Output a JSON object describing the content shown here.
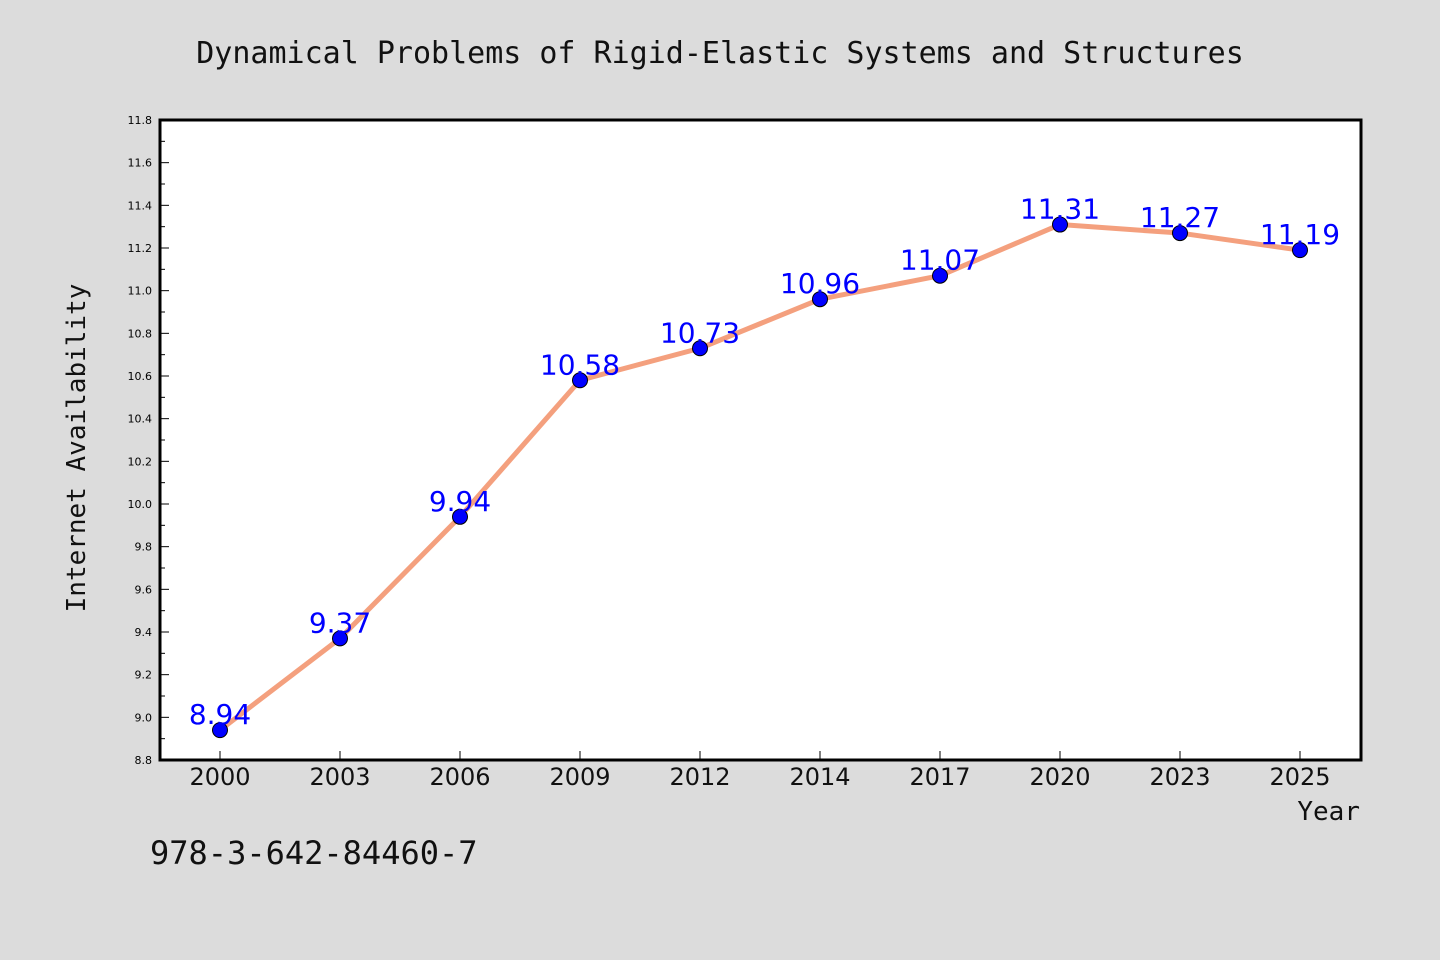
{
  "chart_data": {
    "type": "line",
    "title": "Dynamical Problems of Rigid-Elastic Systems and Structures",
    "xlabel": "Year",
    "ylabel": "Internet Availability",
    "categories": [
      "2000",
      "2003",
      "2006",
      "2009",
      "2012",
      "2014",
      "2017",
      "2020",
      "2023",
      "2025"
    ],
    "series": [
      {
        "values": [
          8.94,
          9.37,
          9.94,
          10.58,
          10.73,
          10.96,
          11.07,
          11.31,
          11.27,
          11.19
        ]
      }
    ],
    "data_labels": [
      "8.94",
      "9.37",
      "9.94",
      "10.58",
      "10.73",
      "10.96",
      "11.07",
      "11.31",
      "11.27",
      "11.19"
    ],
    "ylim": [
      8.8,
      11.8
    ],
    "y_ticks": [
      "8.8",
      "9.0",
      "9.2",
      "9.4",
      "9.6",
      "9.8",
      "10.0",
      "10.2",
      "10.4",
      "10.6",
      "10.8",
      "11.0",
      "11.2",
      "11.4",
      "11.6",
      "11.8"
    ],
    "grid": false,
    "legend": "none",
    "colors": {
      "line": "#f4a07e",
      "marker": "#0000ff",
      "data_label": "#0000ff",
      "plot_background": "#ffffff",
      "page_background": "#dcdcdc"
    }
  },
  "footer": {
    "isbn": "978-3-642-84460-7"
  }
}
